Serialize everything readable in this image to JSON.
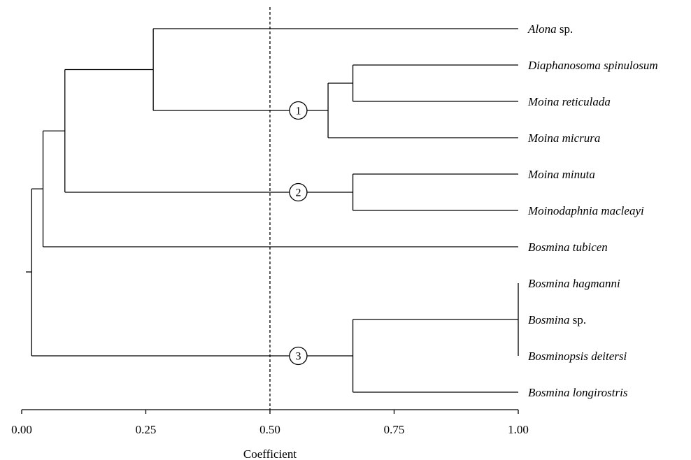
{
  "axis": {
    "label": "Coefficient",
    "range": [
      0,
      1
    ],
    "ticks": [
      {
        "value": 0,
        "label": "0.00"
      },
      {
        "value": 0.25,
        "label": "0.25"
      },
      {
        "value": 0.5,
        "label": "0.50"
      },
      {
        "value": 0.75,
        "label": "0.75"
      },
      {
        "value": 1,
        "label": "1.00"
      }
    ]
  },
  "cut_value": 0.5,
  "taxa": [
    {
      "genus": "Alona",
      "rest": " sp.",
      "rest_italic": false
    },
    {
      "genus": "Diaphanosoma spinulosum",
      "rest": "",
      "rest_italic": true
    },
    {
      "genus": "Moina reticulada",
      "rest": "",
      "rest_italic": true
    },
    {
      "genus": "Moina micrura",
      "rest": "",
      "rest_italic": true
    },
    {
      "genus": "Moina minuta",
      "rest": "",
      "rest_italic": true
    },
    {
      "genus": "Moinodaphnia macleayi",
      "rest": "",
      "rest_italic": true
    },
    {
      "genus": "Bosmina tubicen",
      "rest": "",
      "rest_italic": true
    },
    {
      "genus": "Bosmina hagmanni",
      "rest": "",
      "rest_italic": true
    },
    {
      "genus": "Bosmina",
      "rest": " sp.",
      "rest_italic": false
    },
    {
      "genus": "Bosminopsis deitersi",
      "rest": "",
      "rest_italic": true
    },
    {
      "genus": "Bosmina longirostris",
      "rest": "",
      "rest_italic": true
    }
  ],
  "tree": {
    "height": 0.02,
    "children": [
      {
        "height": 0.043,
        "children": [
          {
            "height": 0.087,
            "children": [
              {
                "height": 0.265,
                "children": [
                  {
                    "leaf": 0
                  },
                  {
                    "height": 0.617,
                    "cluster": "1",
                    "children": [
                      {
                        "height": 0.667,
                        "children": [
                          {
                            "leaf": 1
                          },
                          {
                            "leaf": 2
                          }
                        ]
                      },
                      {
                        "leaf": 3
                      }
                    ]
                  }
                ]
              },
              {
                "height": 0.667,
                "cluster": "2",
                "children": [
                  {
                    "leaf": 4
                  },
                  {
                    "leaf": 5
                  }
                ]
              }
            ]
          },
          {
            "leaf": 6
          }
        ]
      },
      {
        "height": 0.667,
        "cluster": "3",
        "children": [
          {
            "height": 1.0,
            "children": [
              {
                "leaf": 7
              },
              {
                "leaf": 8
              },
              {
                "leaf": 9
              }
            ]
          },
          {
            "leaf": 10
          }
        ]
      }
    ]
  }
}
